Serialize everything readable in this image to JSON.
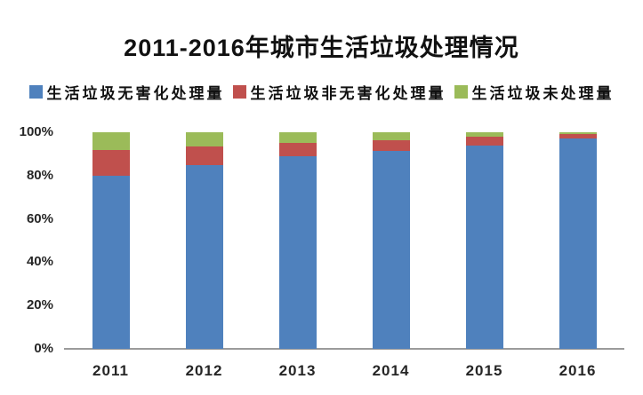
{
  "chart_data": {
    "type": "bar",
    "stacked": true,
    "percent_stacked": true,
    "title": "2011-2016年城市生活垃圾处理情况",
    "categories": [
      "2011",
      "2012",
      "2013",
      "2014",
      "2015",
      "2016"
    ],
    "series": [
      {
        "name": "生活垃圾无害化处理量",
        "color": "#4F81BD",
        "values": [
          80,
          85,
          89,
          91.5,
          94,
          97
        ]
      },
      {
        "name": "生活垃圾非无害化处理量",
        "color": "#C0504D",
        "values": [
          12,
          8.5,
          6,
          4.8,
          4,
          2
        ]
      },
      {
        "name": "生活垃圾未处理量",
        "color": "#9BBB59",
        "values": [
          8,
          6.5,
          5,
          3.7,
          2,
          1
        ]
      }
    ],
    "xlabel": "",
    "ylabel": "",
    "ylim": [
      0,
      100
    ],
    "yticks": [
      "0%",
      "20%",
      "40%",
      "60%",
      "80%",
      "100%"
    ],
    "grid": false,
    "legend_position": "top",
    "unit": "percent"
  },
  "colors": {
    "axis_line": "#9b9b9b",
    "title_text": "#111111",
    "tick_text": "#262626",
    "background": "#ffffff"
  }
}
